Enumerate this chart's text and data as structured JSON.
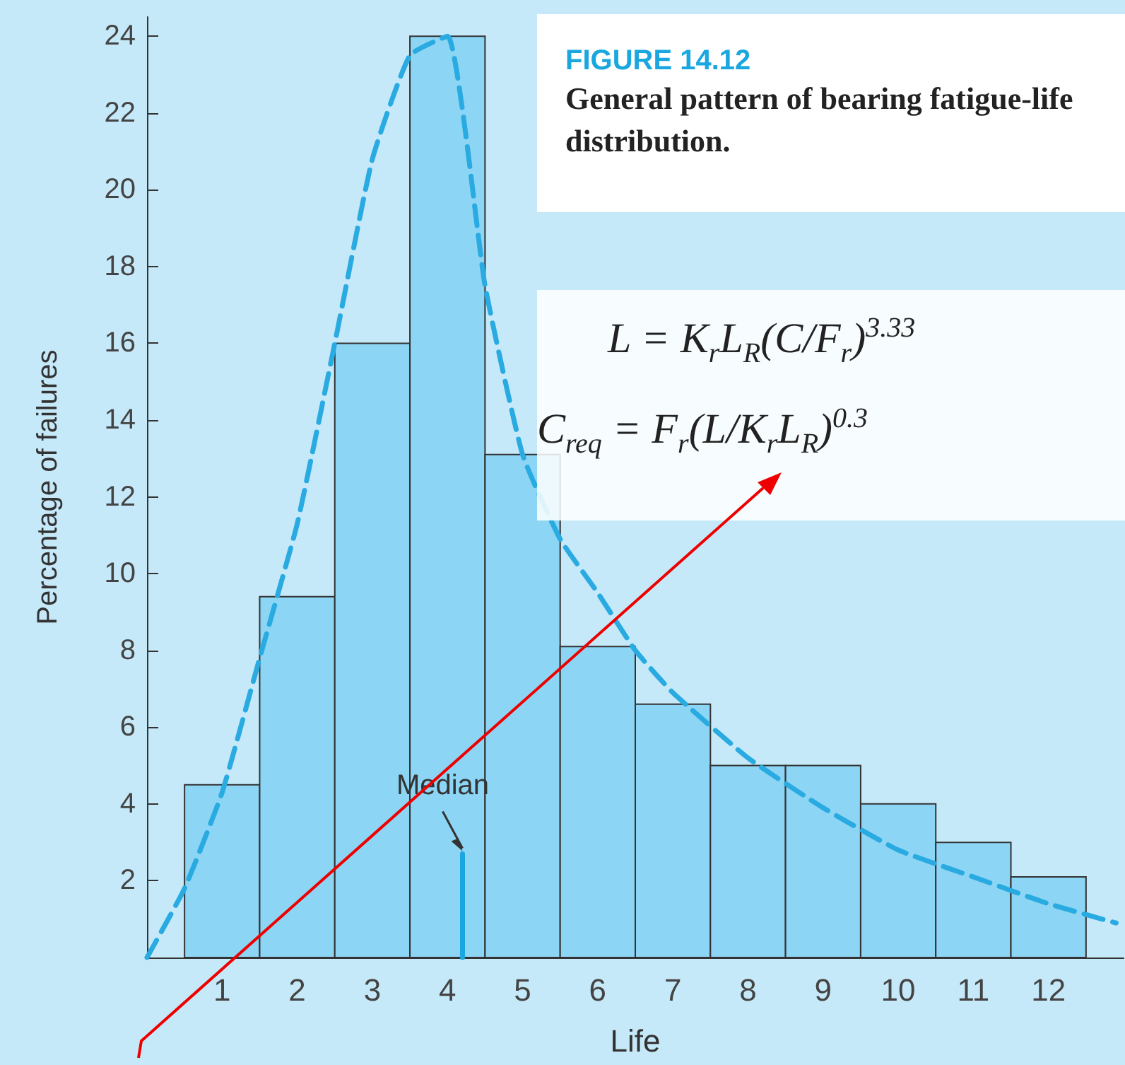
{
  "chart_data": {
    "type": "histogram",
    "title": "FIGURE 14.12",
    "subtitle": "General pattern of bearing fatigue-life distribution.",
    "xlabel": "Life",
    "ylabel": "Percentage of failures",
    "bins": [
      0.5,
      1.5,
      2.5,
      3.5,
      4.5,
      5.5,
      6.5,
      7.5,
      8.5,
      9.5,
      10.5,
      11.5,
      12.5
    ],
    "series": [
      {
        "color": "#8dd5f4",
        "values": [
          4.5,
          9.4,
          16,
          24,
          13.1,
          8.1,
          6.6,
          5,
          5,
          4,
          3,
          2.1
        ]
      },
      {
        "type": "line",
        "color": "#29abe2",
        "x": [
          0,
          0.5,
          1,
          1.5,
          2,
          2.5,
          3,
          3.5,
          4,
          4.5,
          5,
          5.5,
          6,
          6.5,
          7,
          8,
          9,
          10,
          11,
          12,
          12.9
        ],
        "values": [
          0,
          1.8,
          4.3,
          7.8,
          11.3,
          16,
          20.8,
          23.5,
          24,
          17.5,
          13.1,
          10.9,
          9.5,
          8,
          6.9,
          5.2,
          3.9,
          2.8,
          2.1,
          1.4,
          0.9
        ]
      },
      {
        "type": "line",
        "color": "#1aa7e0",
        "x": [
          4.2,
          4.2
        ],
        "values": [
          0,
          2.7
        ],
        "line_style": "solid"
      }
    ],
    "xlim": [
      0,
      13
    ],
    "xticks": [
      1,
      2,
      3,
      4,
      5,
      6,
      7,
      8,
      9,
      10,
      11,
      12
    ],
    "ylim": [
      0,
      24.5
    ],
    "yticks": [
      2,
      4,
      6,
      8,
      10,
      12,
      14,
      16,
      18,
      20,
      22,
      24
    ],
    "annotations": [
      "Median",
      "L = K$_{r}$L$_{R}$(C/F$_{r}$)$^{3.33}$",
      "C$_{req}$ = F$_{r}$(L/K$_{r}$L$_{R}$)$^{0.3}$"
    ],
    "grid": false,
    "marker": "none",
    "line_style": "dashed"
  }
}
